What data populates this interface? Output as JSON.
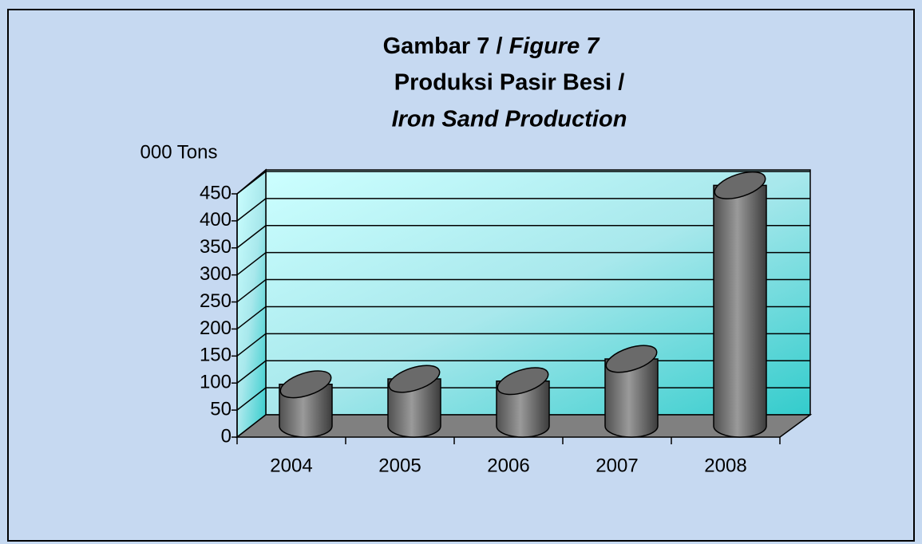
{
  "chart_data": {
    "type": "bar3d",
    "title": "Gambar 7 /",
    "title_en": "Figure 7",
    "subtitle": "Produksi Pasir Besi /",
    "subtitle_en": "Iron Sand Production",
    "y_label": "000 Tons",
    "categories": [
      "2004",
      "2005",
      "2006",
      "2007",
      "2008"
    ],
    "values": [
      77,
      87,
      83,
      124,
      445
    ],
    "color": "#7a7a7a",
    "ylim": [
      0,
      450
    ],
    "yticks": [
      0,
      50,
      100,
      150,
      200,
      250,
      300,
      350,
      400,
      450
    ],
    "grid": true
  }
}
